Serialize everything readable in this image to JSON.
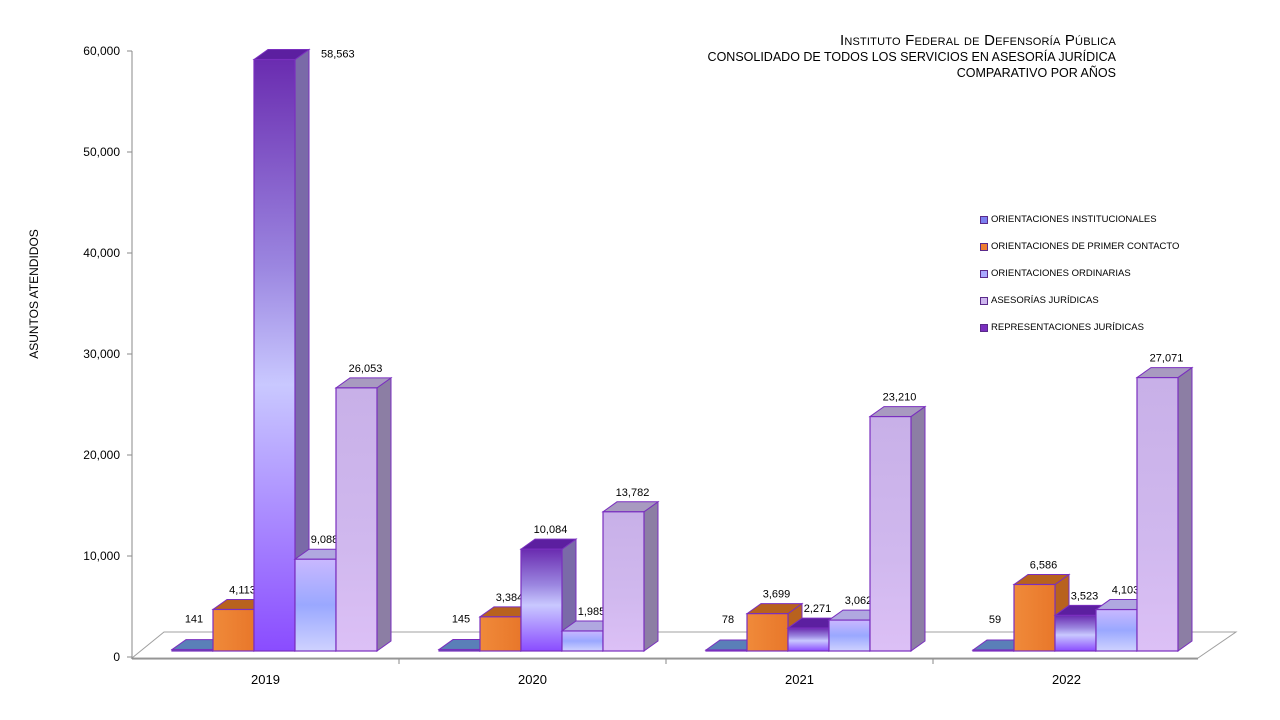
{
  "chart_data": {
    "type": "bar",
    "title": "Instituto Federal de Defensoría Pública",
    "subtitle": "CONSOLIDADO DE TODOS LOS SERVICIOS EN ASESORÍA JURÍDICA",
    "subtitle2": "COMPARATIVO POR AÑOS",
    "ylabel": "ASUNTOS ATENDIDOS",
    "xlabel": "",
    "ylim": [
      0,
      60000
    ],
    "yticks": [
      "0",
      "10,000",
      "20,000",
      "30,000",
      "40,000",
      "50,000",
      "60,000"
    ],
    "ytick_values": [
      0,
      10000,
      20000,
      30000,
      40000,
      50000,
      60000
    ],
    "categories": [
      "2019",
      "2020",
      "2021",
      "2022"
    ],
    "series": [
      {
        "name": "ORIENTACIONES INSTITUCIONALES",
        "values": [
          141,
          145,
          78,
          59
        ],
        "labels": [
          "141",
          "145",
          "78",
          "59"
        ],
        "color": "#4a6fa8"
      },
      {
        "name": "ORIENTACIONES DE PRIMER CONTACTO",
        "values": [
          4113,
          3384,
          3699,
          6586
        ],
        "labels": [
          "4,113",
          "3,384",
          "3,699",
          "6,586"
        ],
        "color": "#ed7d31"
      },
      {
        "name": "REPRESENTACIONES JURÍDICAS",
        "values": [
          58563,
          10084,
          2271,
          3523
        ],
        "labels": [
          "58,563",
          "10,084",
          "2,271",
          "3,523"
        ],
        "color": "#7a3fbf"
      },
      {
        "name": "ORIENTACIONES ORDINARIAS",
        "values": [
          9088,
          1985,
          3062,
          4103
        ],
        "labels": [
          "9,088",
          "1,985",
          "3,062",
          "4,103"
        ],
        "color": "#9aa8ff"
      },
      {
        "name": "ASESORÍAS JURÍDICAS",
        "values": [
          26053,
          13782,
          23210,
          27071
        ],
        "labels": [
          "26,053",
          "13,782",
          "23,210",
          "27,071"
        ],
        "color": "#d4b8f0"
      }
    ],
    "legend": [
      {
        "name": "ORIENTACIONES INSTITUCIONALES",
        "color": "#7b7ff0"
      },
      {
        "name": "ORIENTACIONES DE PRIMER CONTACTO",
        "color": "#ed7d31"
      },
      {
        "name": "ORIENTACIONES ORDINARIAS",
        "color": "#a9a8ff"
      },
      {
        "name": "ASESORÍAS JURÍDICAS",
        "color": "#cdb6ee"
      },
      {
        "name": "REPRESENTACIONES JURÍDICAS",
        "color": "#7a2fbf"
      }
    ],
    "legend_position": "right",
    "grid": false
  }
}
